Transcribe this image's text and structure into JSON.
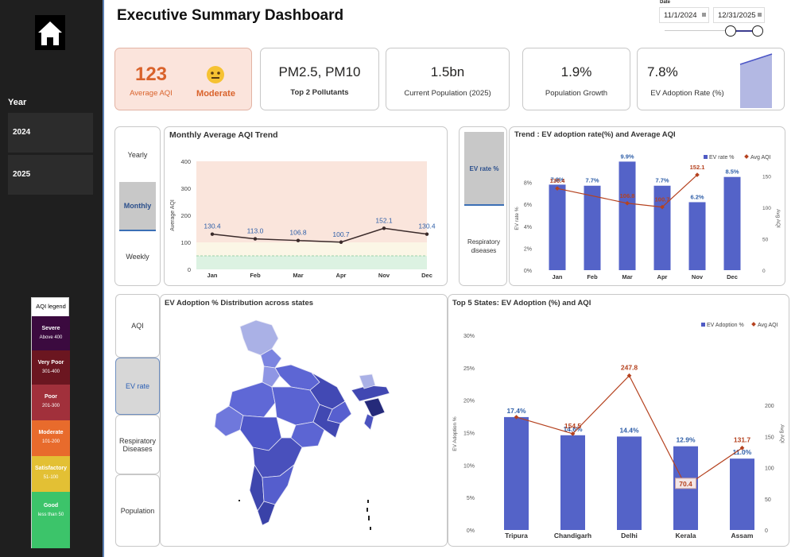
{
  "page_title": "Executive Summary Dashboard",
  "date_filter": {
    "label": "Date",
    "start": "11/1/2024",
    "end": "12/31/2025"
  },
  "sidebar": {
    "year_label": "Year",
    "years": [
      "2024",
      "2025"
    ]
  },
  "aqi_legend": {
    "title": "AQI legend",
    "items": [
      {
        "name": "Severe",
        "range": "Above 400",
        "color": "#3b0a3f"
      },
      {
        "name": "Very Poor",
        "range": "301-400",
        "color": "#6b1620"
      },
      {
        "name": "Poor",
        "range": "201-300",
        "color": "#a1303b"
      },
      {
        "name": "Moderate",
        "range": "101-200",
        "color": "#e86b2c"
      },
      {
        "name": "Satisfactory",
        "range": "51-100",
        "color": "#e8c12c"
      },
      {
        "name": "Good",
        "range": "less than 50",
        "color": "#3cc46a"
      }
    ]
  },
  "kpis": {
    "aqi": {
      "value": "123",
      "label": "Average AQI",
      "status": "Moderate"
    },
    "pollutants": {
      "value": "PM2.5, PM10",
      "label": "Top 2 Pollutants"
    },
    "population": {
      "value": "1.5bn",
      "label": "Current Population (2025)"
    },
    "growth": {
      "value": "1.9%",
      "label": "Population Growth"
    },
    "ev": {
      "value": "7.8%",
      "label": "EV Adoption Rate (%)"
    }
  },
  "period_toggle": {
    "options": [
      "Yearly",
      "Monthly",
      "Weekly"
    ],
    "selected": "Monthly"
  },
  "metric_toggle": {
    "options": [
      "EV rate %",
      "Respiratory diseases"
    ],
    "selected": "EV rate %"
  },
  "bottom_tabs": {
    "options": [
      "AQI",
      "EV rate",
      "Respiratory Diseases",
      "Population"
    ],
    "selected": "EV rate"
  },
  "map": {
    "title": "EV Adoption % Distribution across states"
  },
  "chart_data": [
    {
      "type": "line",
      "title": "Monthly Average AQI Trend",
      "ylabel": "Average AQI",
      "categories": [
        "Jan",
        "Feb",
        "Mar",
        "Apr",
        "Nov",
        "Dec"
      ],
      "values": [
        130.4,
        113.0,
        106.8,
        100.7,
        152.1,
        130.4
      ],
      "value_labels": [
        "130.4",
        "113.0",
        "106.8",
        "100.7",
        "152.1",
        "130.4"
      ],
      "ylim": [
        0,
        400
      ],
      "yticks": [
        "0",
        "100",
        "200",
        "300",
        "400"
      ]
    },
    {
      "type": "bar",
      "title": "Trend : EV adoption rate(%) and Average AQI",
      "ylabel": "EV rate %",
      "y2label": "Avg AQI",
      "categories": [
        "Jan",
        "Feb",
        "Mar",
        "Apr",
        "Nov",
        "Dec"
      ],
      "legend": [
        "EV rate %",
        "Avg AQI"
      ],
      "series": [
        {
          "name": "EV rate %",
          "values": [
            7.8,
            7.7,
            9.9,
            7.7,
            6.2,
            8.5
          ],
          "labels": [
            "7.8%",
            "7.7%",
            "9.9%",
            "7.7%",
            "6.2%",
            "8.5%"
          ]
        },
        {
          "name": "Avg AQI",
          "values": [
            130.4,
            null,
            106.8,
            100.7,
            152.1,
            null
          ],
          "labels": [
            "130.4",
            "",
            "106.8",
            "100.7",
            "152.1",
            ""
          ]
        }
      ],
      "yticks": [
        "0%",
        "2%",
        "4%",
        "6%",
        "8%"
      ],
      "y2ticks": [
        "0",
        "50",
        "100",
        "150"
      ],
      "ylim": [
        0,
        10
      ],
      "y2lim": [
        0,
        175
      ]
    },
    {
      "type": "bar",
      "title": "Top 5 States: EV Adoption (%) and AQI",
      "ylabel": "EV Adoption %",
      "y2label": "Avg AQI",
      "categories": [
        "Tripura",
        "Chandigarh",
        "Delhi",
        "Kerala",
        "Assam"
      ],
      "legend": [
        "EV Adoption %",
        "Avg AQI"
      ],
      "series": [
        {
          "name": "EV Adoption %",
          "values": [
            17.4,
            14.6,
            14.4,
            12.9,
            11.0
          ],
          "labels": [
            "17.4%",
            "14.6%",
            "14.4%",
            "12.9%",
            "11.0%"
          ]
        },
        {
          "name": "Avg AQI",
          "values": [
            null,
            154.5,
            247.8,
            70.4,
            131.7
          ],
          "labels": [
            "",
            "154.5",
            "247.8",
            "70.4",
            "131.7"
          ]
        }
      ],
      "yticks": [
        "0%",
        "5%",
        "10%",
        "15%",
        "20%",
        "25%",
        "30%"
      ],
      "y2ticks": [
        "0",
        "50",
        "100",
        "150",
        "200"
      ],
      "ylim": [
        0,
        30
      ],
      "y2lim": [
        0,
        250
      ]
    }
  ]
}
